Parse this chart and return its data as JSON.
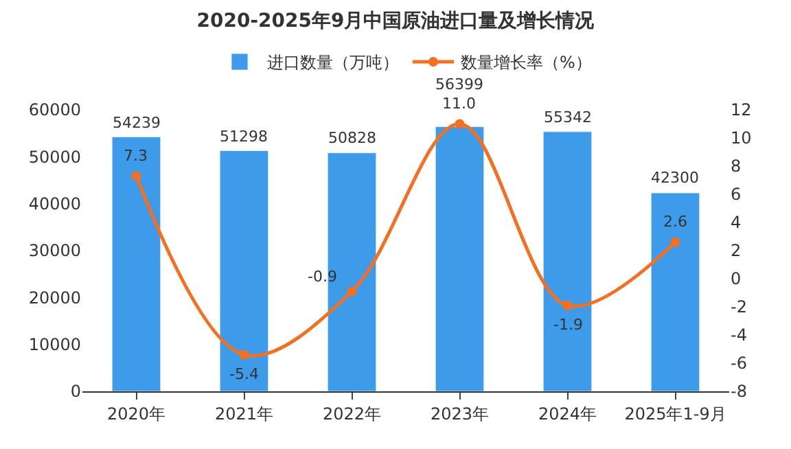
{
  "chart_data": {
    "type": "bar",
    "title": "2020-2025年9月中国原油进口量及增长情况",
    "categories": [
      "2020年",
      "2021年",
      "2022年",
      "2023年",
      "2024年",
      "2025年1-9月"
    ],
    "series": [
      {
        "name": "进口数量（万吨）",
        "color": "#3d9be9",
        "values": [
          54239,
          51298,
          50828,
          56399,
          55342,
          42300
        ]
      },
      {
        "name": "数量增长率（%）",
        "type": "line",
        "axis": "y2",
        "color": "#f36f21",
        "marker": "circle",
        "values": [
          7.3,
          -5.4,
          -0.9,
          11.0,
          -1.9,
          2.6
        ],
        "value_labels": [
          "7.3",
          "-5.4",
          "-0.9",
          "11.0",
          "-1.9",
          "2.6"
        ]
      }
    ],
    "ylim": [
      0,
      60000
    ],
    "yticks": [
      0,
      10000,
      20000,
      30000,
      40000,
      50000,
      60000
    ],
    "y2lim": [
      -8,
      12
    ],
    "y2ticks": [
      -8,
      -6,
      -4,
      -2,
      0,
      2,
      4,
      6,
      8,
      10,
      12
    ],
    "data_labels": true,
    "legend": "top"
  }
}
